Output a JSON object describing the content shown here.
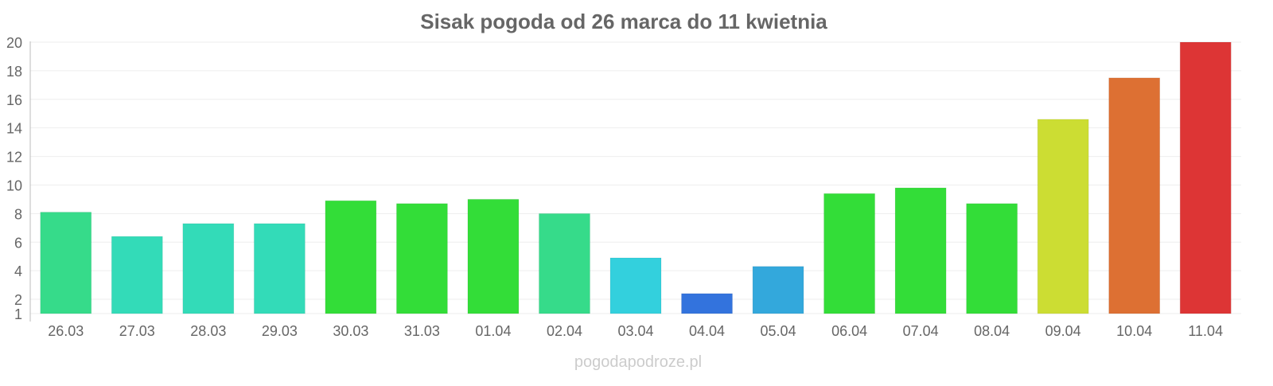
{
  "chart_data": {
    "type": "bar",
    "title": "Sisak pogoda od 26 marca do 11 kwietnia",
    "xlabel": "",
    "ylabel": "",
    "ylim": [
      1,
      20
    ],
    "yticks": [
      1,
      2,
      4,
      6,
      8,
      10,
      12,
      14,
      16,
      18,
      20
    ],
    "grid": true,
    "categories": [
      "26.03",
      "27.03",
      "28.03",
      "29.03",
      "30.03",
      "31.03",
      "01.04",
      "02.04",
      "03.04",
      "04.04",
      "05.04",
      "06.04",
      "07.04",
      "08.04",
      "09.04",
      "10.04",
      "11.04"
    ],
    "values": [
      8.1,
      6.4,
      7.3,
      7.3,
      8.9,
      8.7,
      9.0,
      8.0,
      4.9,
      2.4,
      4.3,
      9.4,
      9.8,
      8.7,
      14.6,
      17.5,
      20.0
    ],
    "colors": [
      "#36db8a",
      "#33dbb8",
      "#33dbb8",
      "#33dbb8",
      "#33dd38",
      "#33dd38",
      "#33dd38",
      "#36db8a",
      "#33d0dd",
      "#3373dd",
      "#33a8dc",
      "#33dd38",
      "#33dd38",
      "#33dd38",
      "#ccdd33",
      "#dd7033",
      "#dd3535"
    ]
  },
  "watermark": "pogodapodroze.pl"
}
